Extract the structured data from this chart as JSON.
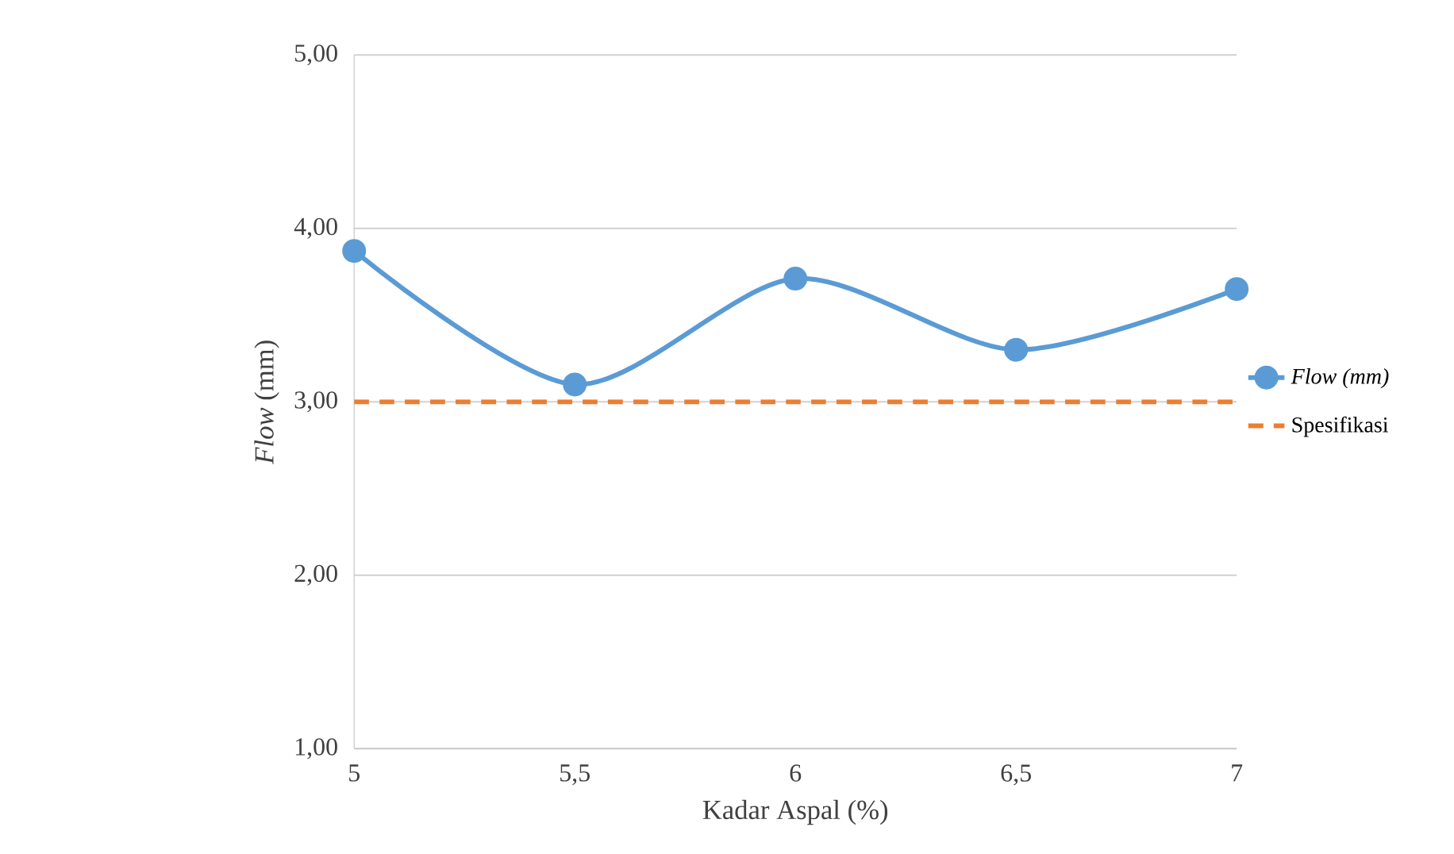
{
  "chart_data": {
    "type": "line",
    "xlabel": "Kadar Aspal (%)",
    "ylabel": "*Flow* (mm)",
    "xlim": [
      5,
      7
    ],
    "xticks": [
      5,
      {
        "value": 5.5,
        "label": "5,5"
      },
      6,
      {
        "value": 6.5,
        "label": "6,5"
      },
      7
    ],
    "ylim": [
      1,
      5
    ],
    "yticks": [
      {
        "value": 1,
        "label": "1,00"
      },
      {
        "value": 2,
        "label": "2,00"
      },
      {
        "value": 3,
        "label": "3,00"
      },
      {
        "value": 4,
        "label": "4,00"
      },
      {
        "value": 5,
        "label": "5,00"
      }
    ],
    "grid": "y",
    "legend": "right",
    "series": [
      {
        "name": "Flow (mm)",
        "color": "#5b9bd5",
        "marker": "circle",
        "line_style": "solid",
        "x": [
          5,
          5.5,
          6,
          6.5,
          7
        ],
        "values": [
          3.87,
          3.1,
          3.71,
          3.3,
          3.65
        ]
      },
      {
        "name": "Spesifikasi",
        "color": "#ed7d31",
        "marker": "none",
        "line_style": "dashed",
        "x": [
          5,
          5.5,
          6,
          6.5,
          7
        ],
        "values": [
          3,
          3,
          3,
          3,
          3
        ]
      }
    ]
  }
}
